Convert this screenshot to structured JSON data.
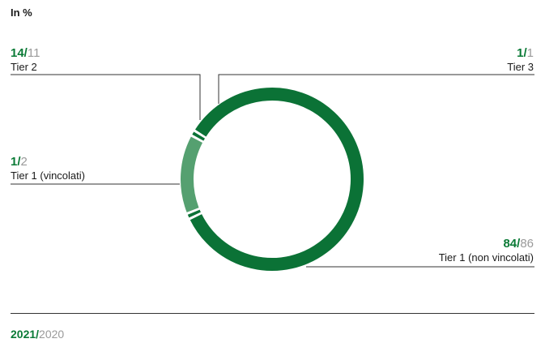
{
  "unit_label": "In %",
  "legend": {
    "year_current": "2021",
    "separator": "/",
    "year_previous": "2020"
  },
  "colors": {
    "dark_green": "#0b7236",
    "light_green": "#55a070",
    "grey": "#9a9a9a",
    "line": "#333333"
  },
  "chart_data": {
    "type": "pie",
    "title": "",
    "unit": "In %",
    "series_years": [
      "2021",
      "2020"
    ],
    "slices": [
      {
        "label": "Tier 1 (non vincolati)",
        "value_2021": 84,
        "value_2020": 86,
        "color": "#0b7236"
      },
      {
        "label": "Tier 1 (vincolati)",
        "value_2021": 1,
        "value_2020": 2,
        "color": "#0b7236"
      },
      {
        "label": "Tier 2",
        "value_2021": 14,
        "value_2020": 11,
        "color": "#55a070"
      },
      {
        "label": "Tier 3",
        "value_2021": 1,
        "value_2020": 1,
        "color": "#0b7236"
      }
    ],
    "labels": {
      "tier2": {
        "v21": "14/",
        "v20": "11",
        "name": "Tier 2"
      },
      "tier3": {
        "v21": "1/",
        "v20": "1",
        "name": "Tier 3"
      },
      "tier1v": {
        "v21": "1/",
        "v20": "2",
        "name": "Tier 1 (vincolati)"
      },
      "tier1nv": {
        "v21": "84/",
        "v20": "86",
        "name": "Tier 1 (non vincolati)"
      }
    }
  }
}
